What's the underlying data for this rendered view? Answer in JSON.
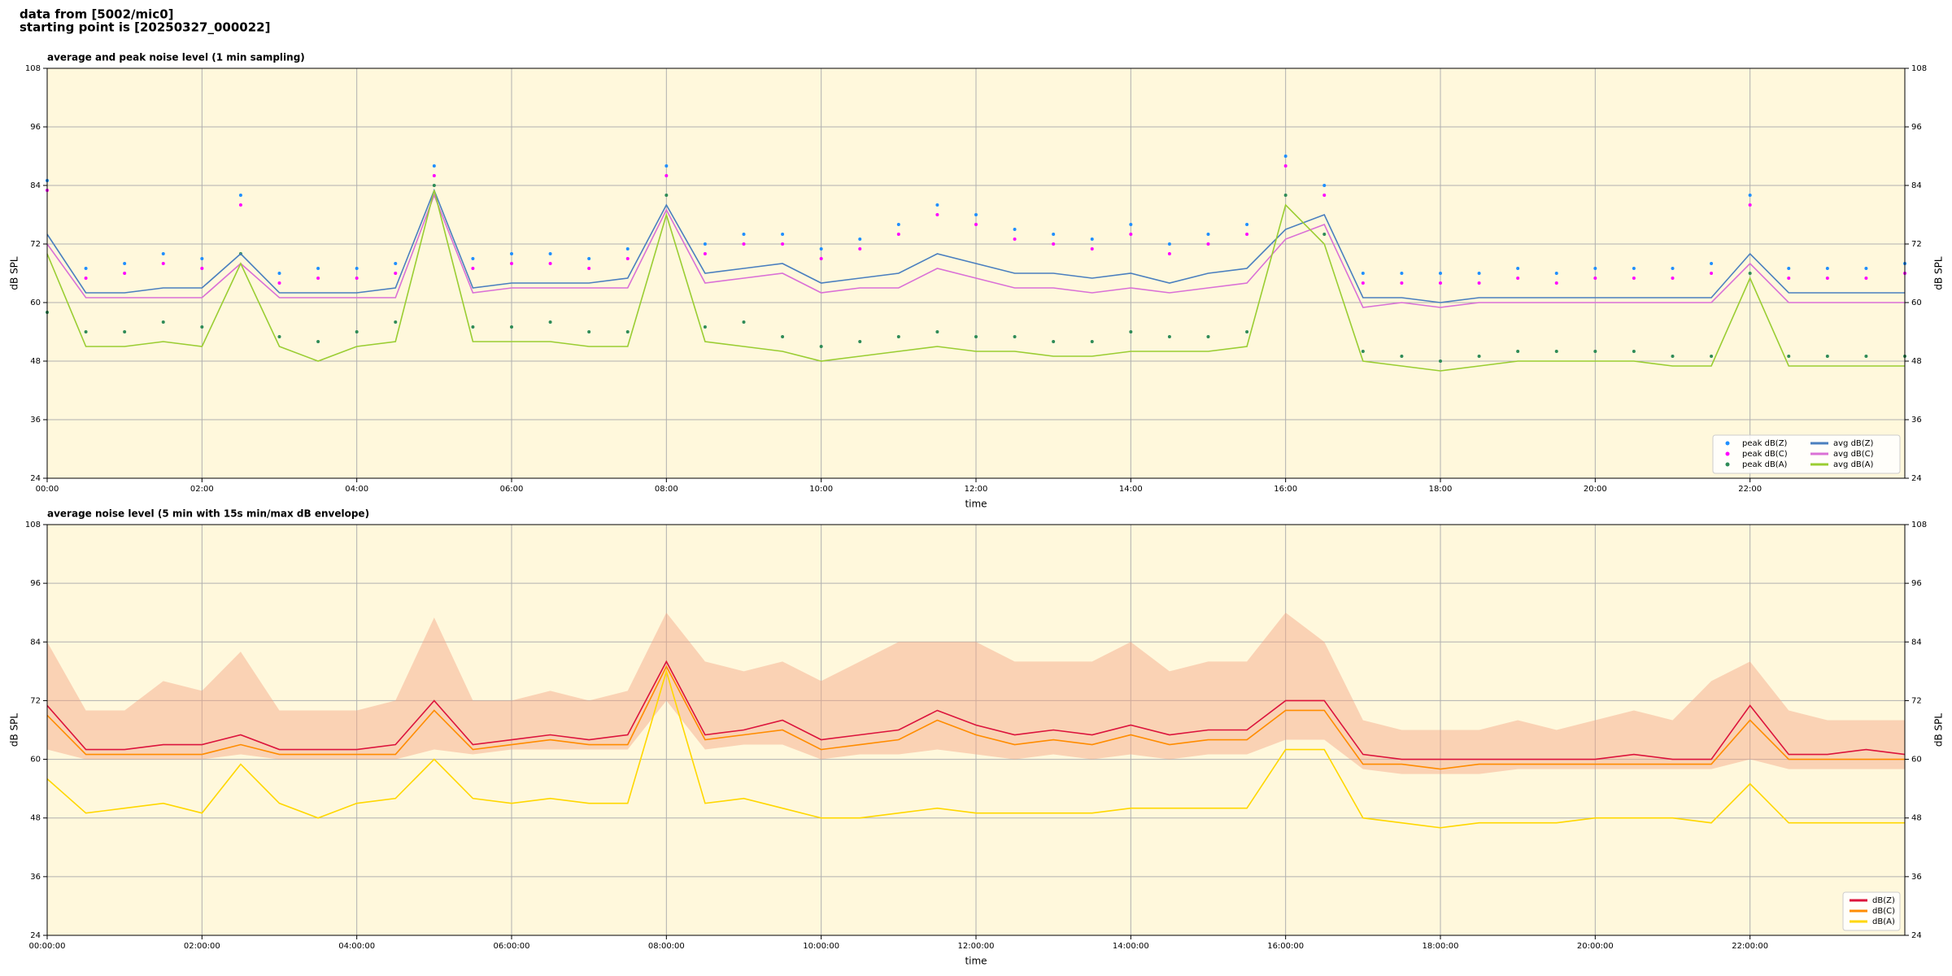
{
  "header": {
    "line1": "data from [5002/mic0]",
    "line2": "starting point is [20250327_000022]"
  },
  "chart_data": [
    {
      "type": "line",
      "title": "average and peak noise level (1 min sampling)",
      "xlabel": "time",
      "ylabel": "dB SPL",
      "xlim": [
        0,
        24
      ],
      "ylim": [
        24,
        108
      ],
      "yticks": [
        24,
        36,
        48,
        60,
        72,
        84,
        96,
        108
      ],
      "xticks": [
        {
          "value": 0,
          "label": "00:00"
        },
        {
          "value": 2,
          "label": "02:00"
        },
        {
          "value": 4,
          "label": "04:00"
        },
        {
          "value": 6,
          "label": "06:00"
        },
        {
          "value": 8,
          "label": "08:00"
        },
        {
          "value": 10,
          "label": "10:00"
        },
        {
          "value": 12,
          "label": "12:00"
        },
        {
          "value": 14,
          "label": "14:00"
        },
        {
          "value": 16,
          "label": "16:00"
        },
        {
          "value": 18,
          "label": "18:00"
        },
        {
          "value": 20,
          "label": "20:00"
        },
        {
          "value": 22,
          "label": "22:00"
        }
      ],
      "grid": true,
      "legend": "lower right",
      "background": "#fff8dc",
      "x": [
        0,
        0.5,
        1,
        1.5,
        2,
        2.5,
        3,
        3.5,
        4,
        4.5,
        5,
        5.5,
        6,
        6.5,
        7,
        7.5,
        8,
        8.5,
        9,
        9.5,
        10,
        10.5,
        11,
        11.5,
        12,
        12.5,
        13,
        13.5,
        14,
        14.5,
        15,
        15.5,
        16,
        16.5,
        17,
        17.5,
        18,
        18.5,
        19,
        19.5,
        20,
        20.5,
        21,
        21.5,
        22,
        22.5,
        23,
        23.5,
        24
      ],
      "series": [
        {
          "name": "peak dB(Z)",
          "mark": "dot",
          "color": "#1f8fff",
          "values": [
            85,
            67,
            68,
            70,
            69,
            82,
            66,
            67,
            67,
            68,
            88,
            69,
            70,
            70,
            69,
            71,
            88,
            72,
            74,
            74,
            71,
            73,
            76,
            80,
            78,
            75,
            74,
            73,
            76,
            72,
            74,
            76,
            90,
            84,
            66,
            66,
            66,
            66,
            67,
            66,
            67,
            67,
            67,
            68,
            82,
            67,
            67,
            67,
            68
          ]
        },
        {
          "name": "peak dB(C)",
          "mark": "dot",
          "color": "#ff00ff",
          "values": [
            83,
            65,
            66,
            68,
            67,
            80,
            64,
            65,
            65,
            66,
            86,
            67,
            68,
            68,
            67,
            69,
            86,
            70,
            72,
            72,
            69,
            71,
            74,
            78,
            76,
            73,
            72,
            71,
            74,
            70,
            72,
            74,
            88,
            82,
            64,
            64,
            64,
            64,
            65,
            64,
            65,
            65,
            65,
            66,
            80,
            65,
            65,
            65,
            66
          ]
        },
        {
          "name": "peak dB(A)",
          "mark": "dot",
          "color": "#2e8b57",
          "values": [
            58,
            54,
            54,
            56,
            55,
            70,
            53,
            52,
            54,
            56,
            84,
            55,
            55,
            56,
            54,
            54,
            82,
            55,
            56,
            53,
            51,
            52,
            53,
            54,
            53,
            53,
            52,
            52,
            54,
            53,
            53,
            54,
            82,
            74,
            50,
            49,
            48,
            49,
            50,
            50,
            50,
            50,
            49,
            49,
            66,
            49,
            49,
            49,
            49
          ]
        },
        {
          "name": "avg dB(Z)",
          "mark": "line",
          "color": "#4a7fbf",
          "values": [
            74,
            62,
            62,
            63,
            63,
            70,
            62,
            62,
            62,
            63,
            83,
            63,
            64,
            64,
            64,
            65,
            80,
            66,
            67,
            68,
            64,
            65,
            66,
            70,
            68,
            66,
            66,
            65,
            66,
            64,
            66,
            67,
            75,
            78,
            61,
            61,
            60,
            61,
            61,
            61,
            61,
            61,
            61,
            61,
            70,
            62,
            62,
            62,
            62
          ]
        },
        {
          "name": "avg dB(C)",
          "mark": "line",
          "color": "#da70d6",
          "values": [
            72,
            61,
            61,
            61,
            61,
            68,
            61,
            61,
            61,
            61,
            82,
            62,
            63,
            63,
            63,
            63,
            79,
            64,
            65,
            66,
            62,
            63,
            63,
            67,
            65,
            63,
            63,
            62,
            63,
            62,
            63,
            64,
            73,
            76,
            59,
            60,
            59,
            60,
            60,
            60,
            60,
            60,
            60,
            60,
            68,
            60,
            60,
            60,
            60
          ]
        },
        {
          "name": "avg dB(A)",
          "mark": "line",
          "color": "#9acd32",
          "values": [
            70,
            51,
            51,
            52,
            51,
            68,
            51,
            48,
            51,
            52,
            83,
            52,
            52,
            52,
            51,
            51,
            78,
            52,
            51,
            50,
            48,
            49,
            50,
            51,
            50,
            50,
            49,
            49,
            50,
            50,
            50,
            51,
            80,
            72,
            48,
            47,
            46,
            47,
            48,
            48,
            48,
            48,
            47,
            47,
            65,
            47,
            47,
            47,
            47
          ]
        }
      ]
    },
    {
      "type": "line",
      "title": "average noise level (5 min with 15s min/max dB envelope)",
      "xlabel": "time",
      "ylabel": "dB SPL",
      "xlim": [
        0,
        24
      ],
      "ylim": [
        24,
        108
      ],
      "yticks": [
        24,
        36,
        48,
        60,
        72,
        84,
        96,
        108
      ],
      "xticks": [
        {
          "value": 0,
          "label": "00:00:00"
        },
        {
          "value": 2,
          "label": "02:00:00"
        },
        {
          "value": 4,
          "label": "04:00:00"
        },
        {
          "value": 6,
          "label": "06:00:00"
        },
        {
          "value": 8,
          "label": "08:00:00"
        },
        {
          "value": 10,
          "label": "10:00:00"
        },
        {
          "value": 12,
          "label": "12:00:00"
        },
        {
          "value": 14,
          "label": "14:00:00"
        },
        {
          "value": 16,
          "label": "16:00:00"
        },
        {
          "value": 18,
          "label": "18:00:00"
        },
        {
          "value": 20,
          "label": "20:00:00"
        },
        {
          "value": 22,
          "label": "22:00:00"
        }
      ],
      "grid": true,
      "legend": "lower right",
      "background": "#fff8dc",
      "x": [
        0,
        0.5,
        1,
        1.5,
        2,
        2.5,
        3,
        3.5,
        4,
        4.5,
        5,
        5.5,
        6,
        6.5,
        7,
        7.5,
        8,
        8.5,
        9,
        9.5,
        10,
        10.5,
        11,
        11.5,
        12,
        12.5,
        13,
        13.5,
        14,
        14.5,
        15,
        15.5,
        16,
        16.5,
        17,
        17.5,
        18,
        18.5,
        19,
        19.5,
        20,
        20.5,
        21,
        21.5,
        22,
        22.5,
        23,
        23.5,
        24
      ],
      "envelope": {
        "color": "#f4a582",
        "lower": [
          62,
          60,
          60,
          60,
          60,
          61,
          60,
          60,
          60,
          60,
          62,
          61,
          62,
          62,
          62,
          62,
          72,
          62,
          63,
          63,
          60,
          61,
          61,
          62,
          61,
          60,
          61,
          60,
          61,
          60,
          61,
          61,
          64,
          64,
          58,
          57,
          57,
          57,
          58,
          58,
          58,
          58,
          58,
          58,
          60,
          58,
          58,
          58,
          58
        ],
        "upper": [
          84,
          70,
          70,
          76,
          74,
          82,
          70,
          70,
          70,
          72,
          89,
          72,
          72,
          74,
          72,
          74,
          90,
          80,
          78,
          80,
          76,
          80,
          84,
          84,
          84,
          80,
          80,
          80,
          84,
          78,
          80,
          80,
          90,
          84,
          68,
          66,
          66,
          66,
          68,
          66,
          68,
          70,
          68,
          76,
          80,
          70,
          68,
          68,
          68
        ]
      },
      "series": [
        {
          "name": "dB(Z)",
          "mark": "line",
          "color": "#dc143c",
          "values": [
            71,
            62,
            62,
            63,
            63,
            65,
            62,
            62,
            62,
            63,
            72,
            63,
            64,
            65,
            64,
            65,
            80,
            65,
            66,
            68,
            64,
            65,
            66,
            70,
            67,
            65,
            66,
            65,
            67,
            65,
            66,
            66,
            72,
            72,
            61,
            60,
            60,
            60,
            60,
            60,
            60,
            61,
            60,
            60,
            71,
            61,
            61,
            62,
            61
          ]
        },
        {
          "name": "dB(C)",
          "mark": "line",
          "color": "#ff8c00",
          "values": [
            69,
            61,
            61,
            61,
            61,
            63,
            61,
            61,
            61,
            61,
            70,
            62,
            63,
            64,
            63,
            63,
            79,
            64,
            65,
            66,
            62,
            63,
            64,
            68,
            65,
            63,
            64,
            63,
            65,
            63,
            64,
            64,
            70,
            70,
            59,
            59,
            58,
            59,
            59,
            59,
            59,
            59,
            59,
            59,
            68,
            60,
            60,
            60,
            60
          ]
        },
        {
          "name": "dB(A)",
          "mark": "line",
          "color": "#ffd700",
          "values": [
            56,
            49,
            50,
            51,
            49,
            59,
            51,
            48,
            51,
            52,
            60,
            52,
            51,
            52,
            51,
            51,
            78,
            51,
            52,
            50,
            48,
            48,
            49,
            50,
            49,
            49,
            49,
            49,
            50,
            50,
            50,
            50,
            62,
            62,
            48,
            47,
            46,
            47,
            47,
            47,
            48,
            48,
            48,
            47,
            55,
            47,
            47,
            47,
            47
          ]
        }
      ]
    }
  ]
}
